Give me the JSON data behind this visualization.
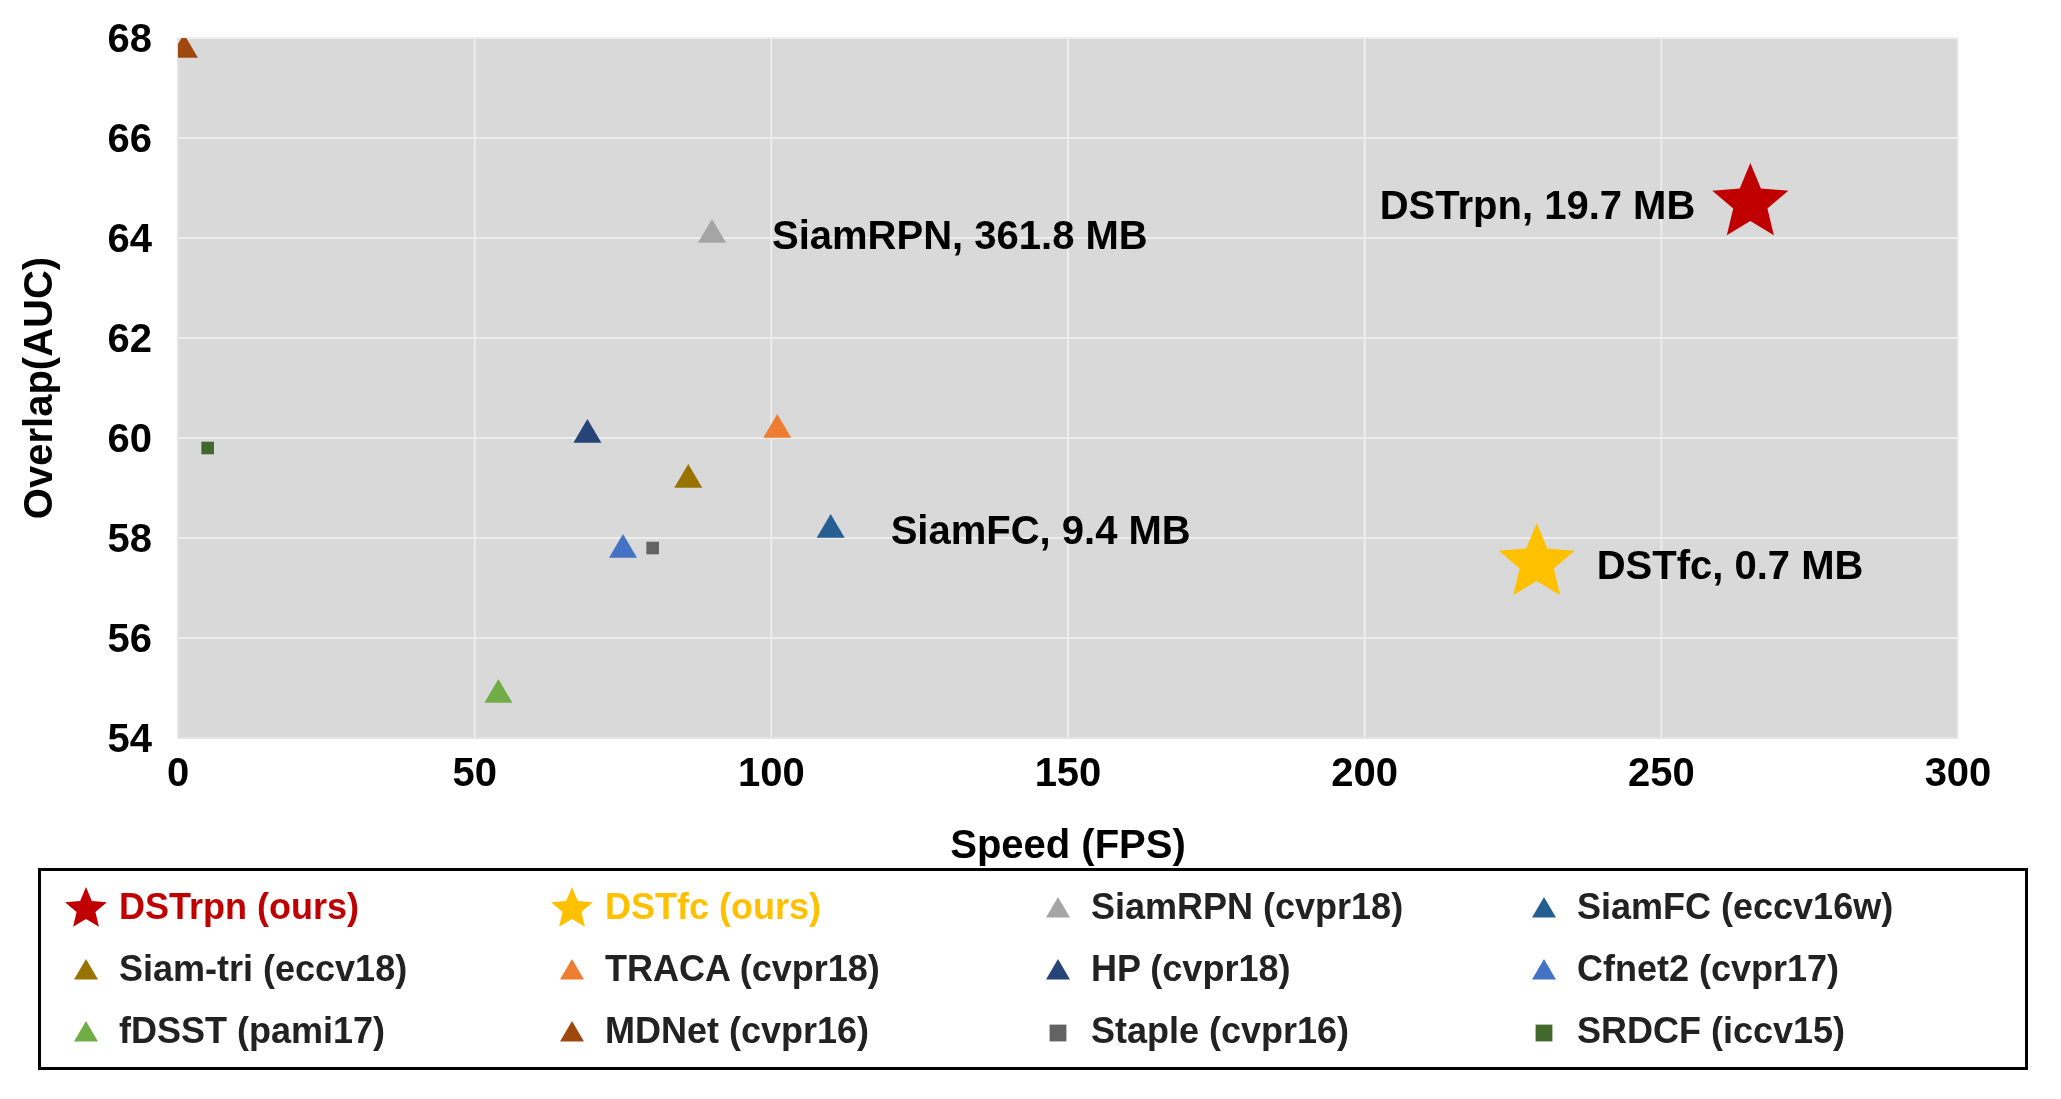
{
  "chart_data": {
    "type": "scatter",
    "xlabel": "Speed (FPS)",
    "ylabel": "Overlap(AUC)",
    "xlim": [
      0,
      300
    ],
    "xticks": [
      0,
      50,
      100,
      150,
      200,
      250,
      300
    ],
    "ylim": [
      54,
      68
    ],
    "yticks": [
      54,
      56,
      58,
      60,
      62,
      64,
      66,
      68
    ],
    "grid": true,
    "legend": "bottom",
    "series": [
      {
        "name": "DSTrpn (ours)",
        "color": "#c00000",
        "marker": "star",
        "x": [
          265
        ],
        "values": [
          64.7
        ]
      },
      {
        "name": "DSTfc (ours)",
        "color": "#ffc000",
        "marker": "star",
        "x": [
          229
        ],
        "values": [
          57.5
        ]
      },
      {
        "name": "SiamRPN (cvpr18)",
        "color": "#a5a5a5",
        "marker": "triangle",
        "x": [
          90
        ],
        "values": [
          64.1
        ]
      },
      {
        "name": "SiamFC (eccv16w)",
        "color": "#255e91",
        "marker": "triangle",
        "x": [
          110
        ],
        "values": [
          58.2
        ]
      },
      {
        "name": "Siam-tri (eccv18)",
        "color": "#997300",
        "marker": "triangle",
        "x": [
          86
        ],
        "values": [
          59.2
        ]
      },
      {
        "name": "TRACA (cvpr18)",
        "color": "#ed7d31",
        "marker": "triangle",
        "x": [
          101
        ],
        "values": [
          60.2
        ]
      },
      {
        "name": "HP (cvpr18)",
        "color": "#264478",
        "marker": "triangle",
        "x": [
          69
        ],
        "values": [
          60.1
        ]
      },
      {
        "name": "Cfnet2 (cvpr17)",
        "color": "#4472c4",
        "marker": "triangle",
        "x": [
          75
        ],
        "values": [
          57.8
        ]
      },
      {
        "name": "fDSST (pami17)",
        "color": "#70ad47",
        "marker": "triangle",
        "x": [
          54
        ],
        "values": [
          54.9
        ]
      },
      {
        "name": "MDNet (cvpr16)",
        "color": "#9e480e",
        "marker": "triangle",
        "x": [
          1
        ],
        "values": [
          67.8
        ]
      },
      {
        "name": "Staple (cvpr16)",
        "color": "#636363",
        "marker": "square",
        "x": [
          80
        ],
        "values": [
          57.8
        ]
      },
      {
        "name": "SRDCF (iccv15)",
        "color": "#43682b",
        "marker": "square",
        "x": [
          5
        ],
        "values": [
          59.8
        ]
      }
    ],
    "annotations": [
      {
        "text": "SiamRPN, 361.8 MB",
        "x": 90,
        "y": 64.1
      },
      {
        "text": "DSTrpn, 19.7 MB",
        "x": 265,
        "y": 64.7
      },
      {
        "text": "SiamFC, 9.4 MB",
        "x": 110,
        "y": 58.2
      },
      {
        "text": "DSTfc, 0.7 MB",
        "x": 229,
        "y": 57.5
      }
    ]
  }
}
